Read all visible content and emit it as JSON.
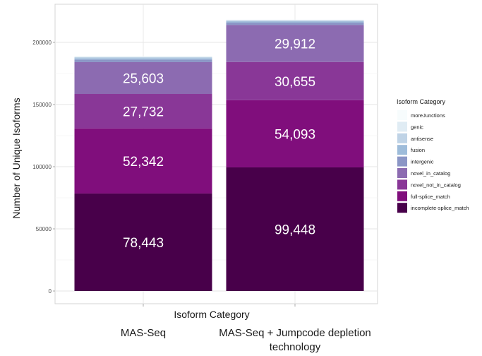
{
  "chart_data": {
    "type": "bar",
    "stacked": true,
    "categories": [
      "MAS-Seq",
      "MAS-Seq + Jumpcode depletion technology"
    ],
    "xlabel": "Isoform Category",
    "ylabel": "Number of Unique Isoforms",
    "ylim": [
      0,
      220000
    ],
    "yticks": [
      0,
      50000,
      100000,
      150000,
      200000
    ],
    "grid": true,
    "legend_title": "Isoform Category",
    "legend_position": "right",
    "series": [
      {
        "name": "incomplete-splice_match",
        "color": "#48004a",
        "values": [
          78443,
          99448
        ],
        "labels": [
          "78,443",
          "99,448"
        ]
      },
      {
        "name": "full-splice_match",
        "color": "#800e7c",
        "values": [
          52342,
          54093
        ],
        "labels": [
          "52,342",
          "54,093"
        ]
      },
      {
        "name": "novel_not_in_catalog",
        "color": "#893797",
        "values": [
          27732,
          30655
        ],
        "labels": [
          "27,732",
          "30,655"
        ]
      },
      {
        "name": "novel_in_catalog",
        "color": "#8c6bb1",
        "values": [
          25603,
          29912
        ],
        "labels": [
          "25,603",
          "29,912"
        ]
      },
      {
        "name": "intergenic",
        "color": "#8b96c6",
        "values": [
          2000,
          1800
        ],
        "labels": [
          "",
          ""
        ]
      },
      {
        "name": "fusion",
        "color": "#9ebcda",
        "values": [
          1200,
          1100
        ],
        "labels": [
          "",
          ""
        ]
      },
      {
        "name": "antisense",
        "color": "#bfd3e6",
        "values": [
          800,
          700
        ],
        "labels": [
          "",
          ""
        ]
      },
      {
        "name": "genic",
        "color": "#e0ecf4",
        "values": [
          500,
          400
        ],
        "labels": [
          "",
          ""
        ]
      },
      {
        "name": "moreJunctions",
        "color": "#f7fcfd",
        "values": [
          200,
          200
        ],
        "labels": [
          "",
          ""
        ]
      }
    ]
  }
}
